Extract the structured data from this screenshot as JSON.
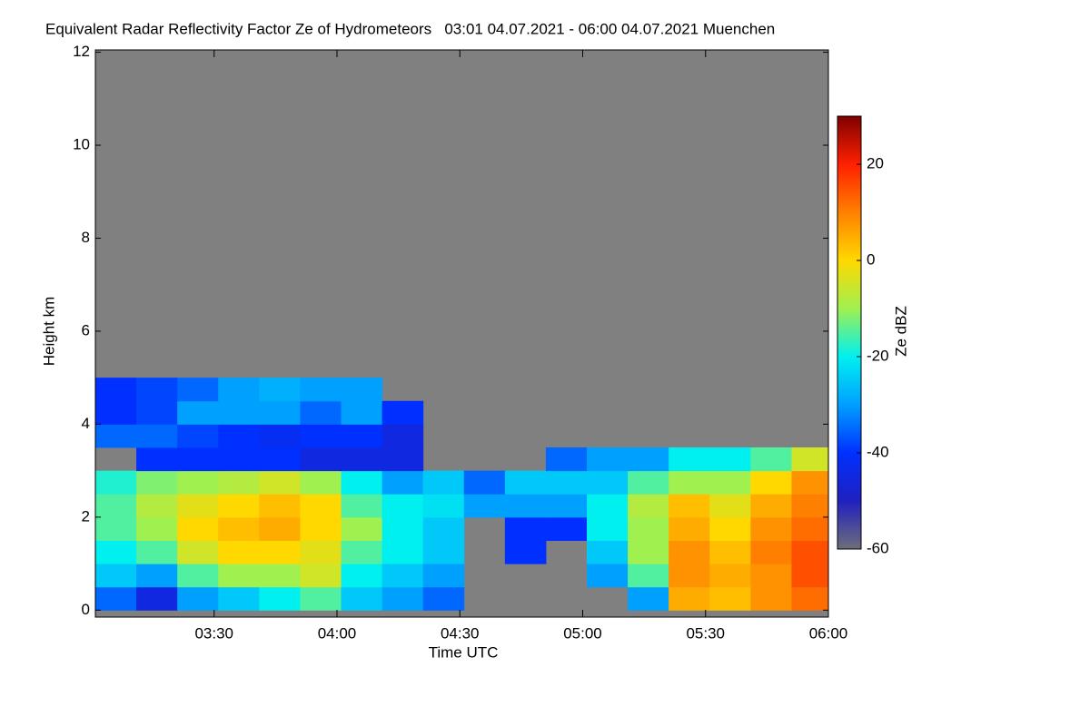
{
  "chart_data": {
    "type": "heatmap",
    "title": "Equivalent Radar Reflectivity Factor Ze of Hydrometeors   03:01 04.07.2021 - 06:00 04.07.2021 Muenchen",
    "xlabel": "Time UTC",
    "ylabel": "Height km",
    "colorbar_label": "Ze dBZ",
    "xlim": [
      181,
      360
    ],
    "xticks": [
      {
        "value": 210,
        "label": "03:30"
      },
      {
        "value": 240,
        "label": "04:00"
      },
      {
        "value": 270,
        "label": "04:30"
      },
      {
        "value": 300,
        "label": "05:00"
      },
      {
        "value": 330,
        "label": "05:30"
      },
      {
        "value": 360,
        "label": "06:00"
      }
    ],
    "ylim": [
      -0.15,
      12.05
    ],
    "yticks": [
      0,
      2,
      4,
      6,
      8,
      10,
      12
    ],
    "clim": [
      -60,
      30
    ],
    "cticks": [
      -60,
      -40,
      -20,
      0,
      20
    ],
    "colormap": [
      "#6e6e7a",
      "#2020c0",
      "#0030ff",
      "#00a0ff",
      "#00f0f0",
      "#a0f050",
      "#ffd800",
      "#ff8000",
      "#ff2000",
      "#800000"
    ],
    "background": "#808080",
    "x": [
      186,
      196,
      206,
      216,
      226,
      236,
      246,
      256,
      266,
      276,
      286,
      296,
      306,
      316,
      326,
      336,
      346,
      356
    ],
    "y": [
      0.25,
      0.75,
      1.25,
      1.75,
      2.25,
      2.75,
      3.25,
      3.75,
      4.25,
      4.75
    ],
    "z": [
      [
        -35,
        -45,
        -30,
        -25,
        -20,
        -15,
        -25,
        -30,
        -35,
        null,
        null,
        null,
        null,
        -30,
        5,
        3,
        8,
        12
      ],
      [
        -25,
        -30,
        -15,
        -10,
        -10,
        -5,
        -20,
        -25,
        -30,
        null,
        null,
        null,
        -30,
        -15,
        8,
        5,
        8,
        15
      ],
      [
        -20,
        -15,
        -5,
        0,
        0,
        -3,
        -15,
        -20,
        -25,
        null,
        -40,
        null,
        -25,
        -10,
        8,
        3,
        10,
        15
      ],
      [
        -15,
        -10,
        0,
        3,
        5,
        0,
        -10,
        -20,
        -25,
        null,
        -40,
        -40,
        -20,
        -10,
        5,
        0,
        8,
        12
      ],
      [
        -15,
        -8,
        -3,
        0,
        3,
        0,
        -15,
        -20,
        -22,
        -30,
        -30,
        -30,
        -20,
        -8,
        3,
        -3,
        5,
        10
      ],
      [
        -18,
        -12,
        -10,
        -8,
        -5,
        -10,
        -20,
        -30,
        -25,
        -35,
        -25,
        -25,
        -25,
        -15,
        -10,
        -10,
        0,
        8
      ],
      [
        null,
        -40,
        -40,
        -40,
        -40,
        -45,
        -45,
        -45,
        null,
        null,
        null,
        -35,
        -30,
        -30,
        -20,
        -20,
        -15,
        -5
      ],
      [
        -35,
        -35,
        -38,
        -40,
        -42,
        -40,
        -40,
        -45,
        null,
        null,
        null,
        null,
        null,
        null,
        null,
        null,
        null,
        null
      ],
      [
        -40,
        -38,
        -30,
        -30,
        -30,
        -35,
        -30,
        -40,
        null,
        null,
        null,
        null,
        null,
        null,
        null,
        null,
        null,
        null
      ],
      [
        -40,
        -38,
        -35,
        -30,
        -28,
        -30,
        -30,
        null,
        null,
        null,
        null,
        null,
        null,
        null,
        null,
        null,
        null,
        null
      ]
    ]
  }
}
